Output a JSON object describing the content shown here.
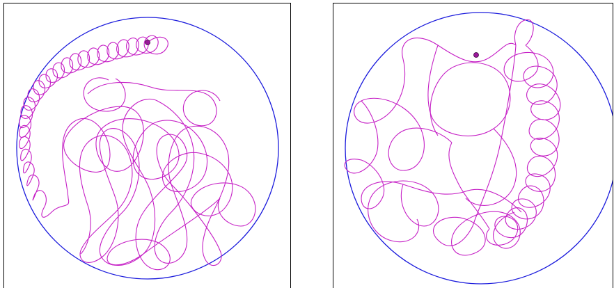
{
  "colors": {
    "boundary": "#1a1adc",
    "trajectory": "#c51ec5",
    "marker_fill": "#9a189a",
    "frame": "#000000",
    "background": "#ffffff"
  },
  "panels": [
    {
      "id": "left",
      "has_marker": true
    },
    {
      "id": "right",
      "has_marker": true
    }
  ]
}
